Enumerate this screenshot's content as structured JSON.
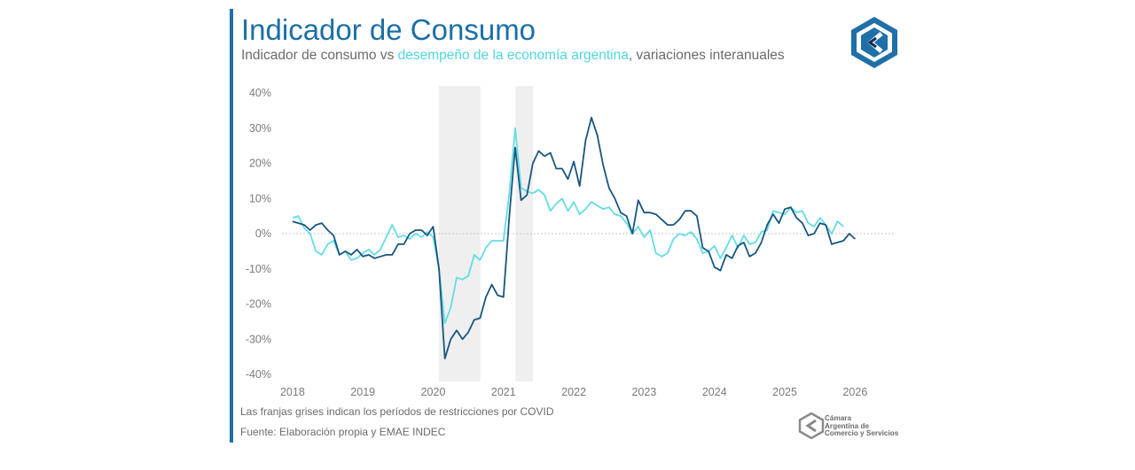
{
  "header": {
    "title": "Indicador de Consumo",
    "subtitle_prefix": "Indicador de consumo vs ",
    "subtitle_highlight": "desempeño de la economía argentina",
    "subtitle_suffix": ", variaciones interanuales"
  },
  "colors": {
    "accent": "#1f6fa8",
    "consumo": "#17567f",
    "emae": "#63dde2",
    "band": "#efefef",
    "axis_text": "#7a7a7a"
  },
  "footer": {
    "note": "Las franjas grises indican los períodos de restricciones por COVID",
    "source": "Fuente: Elaboración propia y EMAE INDEC",
    "org_lines": [
      "Cámara",
      "Argentina de",
      "Comercio y Servicios"
    ]
  },
  "logo": {
    "icon": "cac-hexagon-logo-icon"
  },
  "chart_data": {
    "type": "line",
    "title": "Indicador de Consumo",
    "subtitle": "Indicador de consumo vs desempeño de la economía argentina, variaciones interanuales",
    "xlabel": "",
    "ylabel": "",
    "x_start": 2018.0,
    "x_step": 0.0833333,
    "xlim": [
      2017.85,
      2026.55
    ],
    "ylim": [
      -40,
      40
    ],
    "yticks": [
      40,
      30,
      20,
      10,
      0,
      -10,
      -20,
      -30,
      -40
    ],
    "ytick_labels": [
      "40%",
      "30%",
      "20%",
      "10%",
      "0%",
      "-10%",
      "-20%",
      "-30%",
      "-40%"
    ],
    "xtick_labels": [
      "2018",
      "2019",
      "2020",
      "2021",
      "2022",
      "2023",
      "2024",
      "2025",
      "2026"
    ],
    "shaded_periods": [
      [
        2020.08,
        2020.67
      ],
      [
        2021.17,
        2021.42
      ]
    ],
    "series": [
      {
        "name": "Indicador de consumo",
        "color": "#17567f",
        "values": [
          3.5,
          3,
          2.5,
          1,
          2.5,
          3,
          1,
          -0.5,
          -6,
          -5,
          -6,
          -4.5,
          -6.5,
          -6,
          -7,
          -6.5,
          -6,
          -6,
          -3,
          -3,
          0,
          1,
          1,
          -0.5,
          2,
          -10,
          -35.5,
          -30,
          -27.5,
          -30,
          -28,
          -24.5,
          -24,
          -18,
          -14.5,
          -17.5,
          -18,
          5,
          24.5,
          9.5,
          11,
          20,
          23.5,
          22,
          23,
          18.5,
          18.5,
          15.5,
          20.5,
          13.5,
          26.5,
          33,
          28,
          19.5,
          13,
          10,
          6,
          5,
          0,
          9.5,
          6,
          6,
          5.5,
          4,
          2.5,
          2.5,
          4,
          6.5,
          6.5,
          5,
          -4,
          -5,
          -9.5,
          -10.5,
          -6,
          -7,
          -3.5,
          -2.5,
          -6.5,
          -5.5,
          -2.5,
          2.5,
          5.5,
          3,
          7,
          7.5,
          4.5,
          3,
          -0.5,
          0,
          3,
          2.5,
          -3,
          -2.5,
          -2,
          0,
          -1.5
        ]
      },
      {
        "name": "EMAE INDEC",
        "color": "#63dde2",
        "values": [
          4.5,
          5,
          1.5,
          0,
          -5,
          -6,
          -3,
          -2,
          -6,
          -5,
          -7.5,
          -7,
          -5.5,
          -4.5,
          -6,
          -4.5,
          -1,
          2.5,
          -1,
          -0.5,
          -1.5,
          0,
          -1,
          0.5,
          -1,
          -10,
          -25.5,
          -21,
          -12.5,
          -13,
          -12,
          -6,
          -7.5,
          -4,
          -2,
          -2,
          -2,
          11.5,
          30,
          13,
          12,
          11.5,
          12.5,
          11,
          6.5,
          8.5,
          10,
          6.5,
          9,
          5.5,
          7,
          9,
          8,
          7,
          7.5,
          5.5,
          5,
          3,
          0,
          2,
          -1,
          1,
          -5.5,
          -6.5,
          -5.5,
          -1.5,
          0,
          -0.5,
          0.5,
          -1.5,
          -5.5,
          -5,
          -3.5,
          -7,
          -4,
          -0.5,
          -4,
          -0.5,
          -3,
          -2.5,
          0.5,
          1,
          6.5,
          6,
          5.5,
          7.5,
          6,
          6.5,
          3,
          2,
          4.5,
          2.5,
          0,
          3.5,
          2
        ]
      }
    ]
  }
}
